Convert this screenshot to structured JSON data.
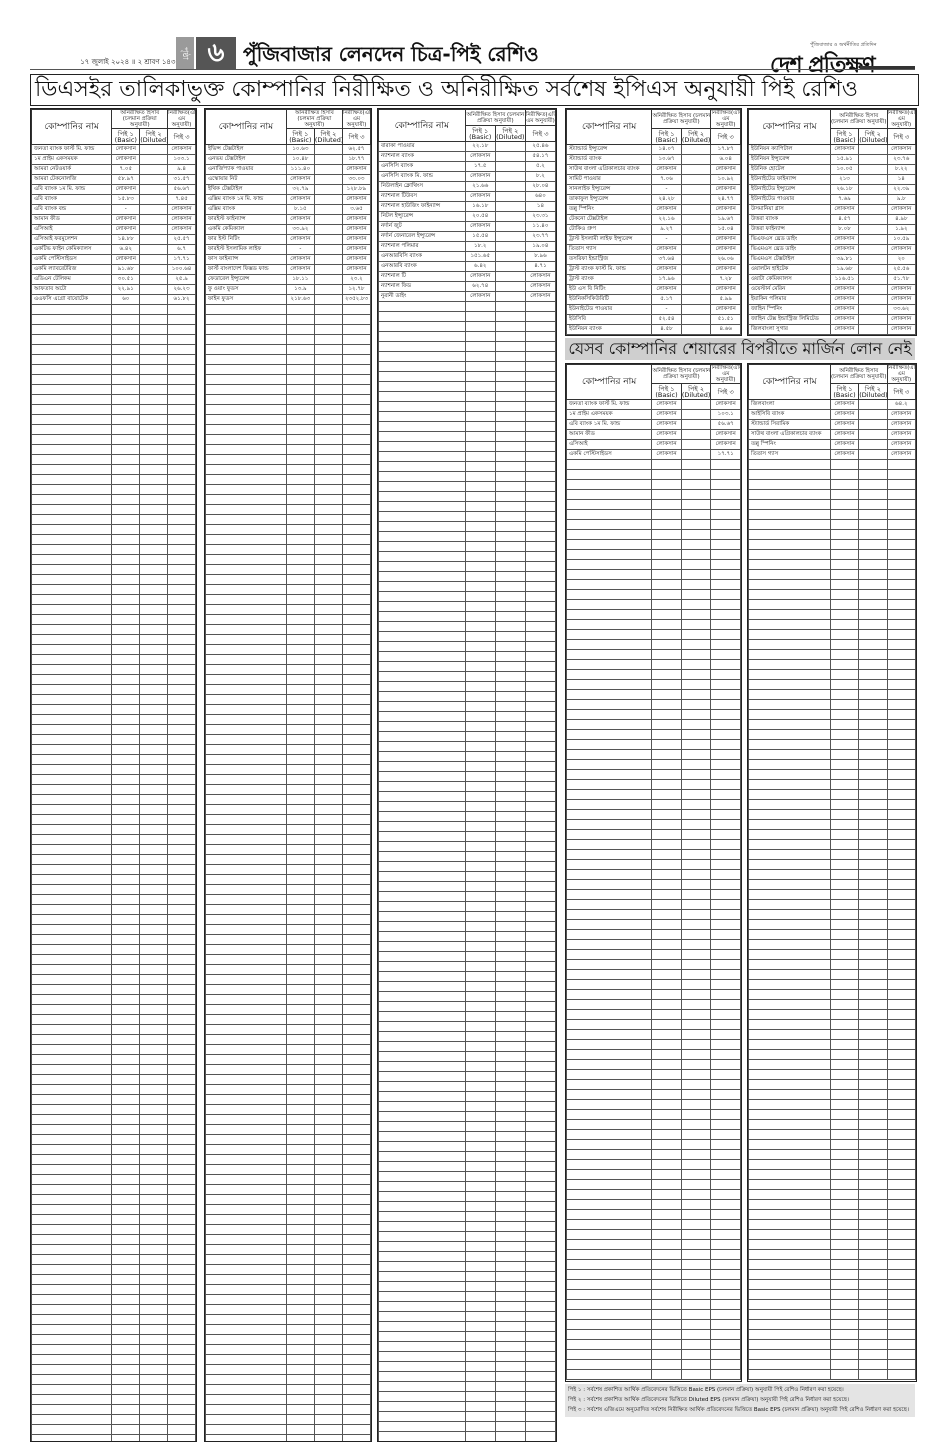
{
  "header": {
    "day": "বুধবার",
    "date": "১৭ জুলাই ২০২৪ ॥ ২ শ্রাবণ ১৪৩১",
    "page_label": "পৃষ্ঠা",
    "page_number": "৬",
    "section_title": "পুঁজিবাজার লেনদেন চিত্র-পিই রেশিও",
    "logo_text": "দেশ প্রতিক্ষণ",
    "logo_tagline": "পুঁজিবাজার ও অর্থনীতির প্রতিদিন"
  },
  "main_banner": "ডিএসইর তালিকাভুক্ত কোম্পানির নিরীক্ষিত ও অনিরীক্ষিত সর্বশেষ ইপিএস অনুযায়ী পিই রেশিও",
  "margin_banner": "যেসব কোম্পানির শেয়ারের বিপরীতে মার্জিন লোন নেই",
  "columns": {
    "company": "কোম্পানির নাম",
    "unaudited": "অনিরীক্ষিত হিসাব (চলমান প্রক্রিয়া অনুযায়ী)",
    "audited": "নিরীক্ষিত(এজি এম অনুযায়ী)",
    "pe1": "পিই ১ (Basic)",
    "pe2": "পিই ২ (Diluted)",
    "pe3": "পিই ৩"
  },
  "tables": {
    "t1": [
      [
        "জনতা ব্যাংক ফার্স্ট মি. ফান্ড",
        "লোকসান",
        "",
        "লোকসান"
      ],
      [
        "১ম প্রাইম একসময়ক",
        "লোকসান",
        "",
        "১০৩.১"
      ],
      [
        "আমরা নেটওয়ার্ক",
        "৭.০৫",
        "",
        "৯.৪"
      ],
      [
        "আমরা টেকনোলজি",
        "৫৮.৯৭",
        "",
        "৩১.৫৭"
      ],
      [
        "এবি ব্যাংক ১ম মি. ফান্ড",
        "লোকসান",
        "",
        "৫৬.৬৭"
      ],
      [
        "এবি ব্যাংক",
        "১৫.৮৩",
        "",
        "৭.৪৫"
      ],
      [
        "এবি ব্যাংক বন্ড",
        "-",
        "",
        "লোকসান"
      ],
      [
        "আমান ফীড",
        "লোকসান",
        "",
        "লোকসান"
      ],
      [
        "এসিআই",
        "লোকসান",
        "",
        "লোকসান"
      ],
      [
        "এসিআই ফরমুলেশন",
        "১৪.৮৮",
        "",
        "২৫.৫৭"
      ],
      [
        "একটিভ ফাইন কেমিক্যালস",
        "৬.৪২",
        "",
        "৬.৭"
      ],
      [
        "একমি পেস্টিসাইডস",
        "লোকসান",
        "",
        "১৭.৭১"
      ],
      [
        "একমি ল্যাবরেটরিজ",
        "৯১.৬৮",
        "",
        "১০০.৬৪"
      ],
      [
        "এডিএন টেলিকম",
        "৩০.৫১",
        "",
        "২৫.৯"
      ],
      [
        "আফতাব অটো",
        "২২.৯১",
        "",
        "২৬.২৩"
      ],
      [
        "এএফসি এগ্রো বায়োটেক",
        "৬০",
        "",
        "৬১.৮২"
      ]
    ],
    "t2": [
      [
        "ইভিন্স টেক্সটাইল",
        "১০.৬৩",
        "",
        "৬২.৫৭"
      ],
      [
        "এনভয় টেক্সটাইল",
        "১০.৪৮",
        "",
        "১৮.৭৭"
      ],
      [
        "এনার্জিপ্যাক পাওয়ার",
        "১১১.৪০",
        "",
        "লোকসান"
      ],
      [
        "এস্কোয়ার নিট",
        "লোকসান",
        "",
        "৩৩.০৩"
      ],
      [
        "ইথিক টেক্সটাইল",
        "৩২.৭৯",
        "",
        "১২৮.৮৯"
      ],
      [
        "এক্সিম ব্যাংক ১ম মি. ফান্ড",
        "লোকসান",
        "",
        "লোকসান"
      ],
      [
        "এক্সিম ব্যাংক",
        "৮.১৫",
        "",
        "৩.৬৫"
      ],
      [
        "ফারইস্ট ফাইন্যান্স",
        "লোকসান",
        "",
        "লোকসান"
      ],
      [
        "একমি কেমিক্যাল",
        "৩৩.৯২",
        "",
        "লোকসান"
      ],
      [
        "ফার ইস্ট নিটিং",
        "লোকসান",
        "",
        "লোকসান"
      ],
      [
        "ফারইস্ট ইসলামিক লাইফ",
        "-",
        "",
        "লোকসান"
      ],
      [
        "ফাস ফাইন্যান্স",
        "লোকসান",
        "",
        "লোকসান"
      ],
      [
        "ফার্স্ট বাংলাদেশ ফিক্সড ফান্ড",
        "লোকসান",
        "",
        "লোকসান"
      ],
      [
        "ফেডারেল ইন্স্যুরেন্স",
        "১৮.১১",
        "",
        "২৩.২"
      ],
      [
        "ফু ওয়াং ফুডস",
        "১৩.৯",
        "",
        "১২.৭৮"
      ],
      [
        "ফাইন ফুডস",
        "২১৮.৬৩",
        "",
        "২৩৫২.৮৩"
      ]
    ],
    "t3": [
      [
        "বারাকা পাওয়ার",
        "২২.১৮",
        "",
        "২৫.৪৬"
      ],
      [
        "ন্যাশনাল ব্যাংক",
        "লোকসান",
        "",
        "৫৪.১৭"
      ],
      [
        "এনসিসি ব্যাংক",
        "১৭.৫",
        "",
        "৫.২"
      ],
      [
        "এনসিসি ব্যাংক মি. ফান্ড",
        "লোকসান",
        "",
        "৮.২"
      ],
      [
        "নিউলাইন ক্লোথিংস",
        "২১.৬৬",
        "",
        "২৮.০৪"
      ],
      [
        "ন্যাশনাল টিউবস",
        "লোকসান",
        "",
        "৬৪০"
      ],
      [
        "ন্যাশনাল হাউজিং ফাইন্যান্স",
        "১৬.১৮",
        "",
        "১৪"
      ],
      [
        "নিটল ইন্স্যুরেন্স",
        "২০.৫৪",
        "",
        "২৩.৩১"
      ],
      [
        "নর্দার্ন জুট",
        "লোকসান",
        "",
        "১১.৪০"
      ],
      [
        "নর্দার্ন জেনারেল ইন্স্যুরেন্স",
        "১৫.৫৪",
        "",
        "২৩.৭৭"
      ],
      [
        "ন্যাশনাল পলিমার",
        "১৮.২",
        "",
        "১৯.০৪"
      ],
      [
        "এনআরবিসি ব্যাংক",
        "১৫১.৬৫",
        "",
        "৮.৯৬"
      ],
      [
        "এনআরবি ব্যাংক",
        "৬.৪২",
        "",
        "৪.৭১"
      ],
      [
        "ন্যাশনাল টি",
        "লোকসান",
        "",
        "লোকসান"
      ],
      [
        "ন্যাশনাল ফিড",
        "৬২.৭৪",
        "",
        "লোকসান"
      ],
      [
        "নুরানী ডাইং",
        "লোকসান",
        "",
        "লোকসান"
      ]
    ],
    "t4": [
      [
        "স্ট্যান্ডার্ড ইন্স্যুরেন্স",
        "১৪.০৭",
        "",
        "১৭.৮৭"
      ],
      [
        "স্ট্যান্ডার্ড ব্যাংক",
        "১০.৬৭",
        "",
        "৬.০৪"
      ],
      [
        "সাউথ বাংলা এগ্রিকালচার ব্যাংক",
        "লোকসান",
        "",
        "লোকসান"
      ],
      [
        "সামিট পাওয়ার",
        "৭.০৬",
        "",
        "১০.৯২"
      ],
      [
        "সানলাইফ ইন্স্যুরেন্স",
        "-",
        "",
        "লোকসান"
      ],
      [
        "তাকাফুল ইন্স্যুরেন্স",
        "২৪.২৮",
        "",
        "২৪.৭৭"
      ],
      [
        "তল্লু স্পিনিং",
        "লোকসান",
        "",
        "লোকসান"
      ],
      [
        "টেকনো টেক্সটাইল",
        "২২.১৬",
        "",
        "১৯.৬৭"
      ],
      [
        "টোকিও গ্রুপ",
        "৯.২৭",
        "",
        "১৫.০৪"
      ],
      [
        "ট্রাস্ট ইসলামী লাইফ ইন্স্যুরেন্স",
        "-",
        "",
        "লোকসান"
      ],
      [
        "তিতাস গ্যাস",
        "লোকসান",
        "",
        "লোকসান"
      ],
      [
        "তসরিফা ইন্ডাস্ট্রিজ",
        "৩৭.৬৪",
        "",
        "২৬.০৬"
      ],
      [
        "ট্রাস্ট ব্যাংক ফার্স্ট মি. ফান্ড",
        "লোকসান",
        "",
        "লোকসান"
      ],
      [
        "ট্রাস্ট ব্যাংক",
        "১৭.৯৬",
        "",
        "৭.২৮"
      ],
      [
        "ইউ এস বি নিটিং",
        "লোকসান",
        "",
        "লোকসান"
      ],
      [
        "ইউনিকসিকিউরিটি",
        "৫.১৭",
        "",
        "৫.৯৯"
      ],
      [
        "ইউনাইটেড পাওয়ার",
        "-",
        "",
        "লোকসান"
      ],
      [
        "ইউসিবি",
        "৫২.৫৪",
        "",
        "৫১.৫১"
      ],
      [
        "ইউনিয়ন ব্যাংক",
        "৪.৫৮",
        "",
        "৪.৬৬"
      ]
    ],
    "t5": [
      [
        "ইউনিয়ন ক্যাপিটাল",
        "লোকসান",
        "",
        "লোকসান"
      ],
      [
        "ইউনিয়ন ইন্স্যুরেন্স",
        "১৫.৯১",
        "",
        "২৩.৭৬"
      ],
      [
        "ইউনিক হোটেল",
        "১০.০৫",
        "",
        "৮.২২"
      ],
      [
        "ইউনাইটেড ফাইন্যান্স",
        "২১৩",
        "",
        "১৪"
      ],
      [
        "ইউনাইটেড ইন্স্যুরেন্স",
        "২৬.১৮",
        "",
        "২২.৩৯"
      ],
      [
        "ইউনাইটেড পাওয়ার",
        "৭.৬৯",
        "",
        "৯.৮"
      ],
      [
        "উসমানিয়া গ্লাস",
        "লোকসান",
        "",
        "লোকসান"
      ],
      [
        "উত্তরা ব্যাংক",
        "৪.৫৭",
        "",
        "৪.৯৮"
      ],
      [
        "উত্তরা ফাইন্যান্স",
        "৮.০৮",
        "",
        "১.৯২"
      ],
      [
        "ভিএফএস থ্রেড ডাইং",
        "লোকসান",
        "",
        "১০.৫৯"
      ],
      [
        "ভিএমএস থ্রেড ডাইং",
        "লোকসান",
        "",
        "লোকসান"
      ],
      [
        "ভিএমএস টেক্সটাইল",
        "৩৯.৮১",
        "",
        "২০"
      ],
      [
        "ওয়ালটন হাইটেক",
        "১৯.৬৮",
        "",
        "২৫.৫৬"
      ],
      [
        "ওয়াটা কেমিক্যালস",
        "১১৬.৫১",
        "",
        "৫১.৭৮"
      ],
      [
        "ওয়েস্টার্ন মেরিন",
        "লোকসান",
        "",
        "লোকসান"
      ],
      [
        "ইয়াকিন পলিমার",
        "লোকসান",
        "",
        "লোকসান"
      ],
      [
        "জাহিন স্পিনিং",
        "লোকসান",
        "",
        "৩৩.৬২"
      ],
      [
        "জাহিন টেক্স ইন্ডাস্ট্রিজ লিমিটেড",
        "লোকসান",
        "",
        "লোকসান"
      ],
      [
        "জিলবাংলা সুগার",
        "লোকসান",
        "",
        "লোকসান"
      ]
    ],
    "t6": [
      [
        "জনতা ব্যাংক ফার্স্ট মি. ফান্ড",
        "লোকসান",
        "",
        "লোকসান"
      ],
      [
        "১ম প্রাইম একসময়ক",
        "লোকসান",
        "",
        "১০৩.১"
      ],
      [
        "এবি ব্যাংক ১ম মি. ফান্ড",
        "লোকসান",
        "",
        "৫৬.৬৭"
      ],
      [
        "আমান ফীড",
        "লোকসান",
        "",
        "লোকসান"
      ],
      [
        "এসিআই",
        "লোকসান",
        "",
        "লোকসান"
      ],
      [
        "একমি পেস্টিসাইডস",
        "লোকসান",
        "",
        "১৭.৭১"
      ]
    ],
    "t7": [
      [
        "জিলবাংলা",
        "লোকসান",
        "",
        "৬৪.২"
      ],
      [
        "আইসিবি ব্যাংক",
        "লোকসান",
        "",
        "লোকসান"
      ],
      [
        "স্ট্যান্ডার্ড সিরামিক",
        "লোকসান",
        "",
        "লোকসান"
      ],
      [
        "সাউথ বাংলা এগ্রিকালচার ব্যাংক",
        "লোকসান",
        "",
        "লোকসান"
      ],
      [
        "তল্লু স্পিনিং",
        "লোকসান",
        "",
        "লোকসান"
      ],
      [
        "তিতাস গ্যাস",
        "লোকসান",
        "",
        "লোকসান"
      ]
    ]
  },
  "footnotes": [
    "পিই ১ : সর্বশেষ প্রকাশিত আর্থিক প্রতিবেদনের ভিত্তিতে Basic EPS (চলমান প্রক্রিয়া) অনুযায়ী পিই রেশিও নির্ধারণ করা হয়েছে।",
    "পিই ২ : সর্বশেষ প্রকাশিত আর্থিক প্রতিবেদনের ভিত্তিতে Diluted EPS (চলমান প্রক্রিয়া) অনুযায়ী পিই রেশিও নির্ধারণ করা হয়েছে।",
    "পিই ৩ : সর্বশেষ এজিএমে অনুমোদিত সর্বশেষ নিরীক্ষিত আর্থিক প্রতিবেদনের ভিত্তিতে Basic EPS (চলমান প্রক্রিয়া) অনুযায়ী পিই রেশিও নির্ধারণ করা হয়েছে।"
  ],
  "colors": {
    "banner_gray": "#cfcfcf",
    "page_badge": "#555555",
    "notes_bg": "#e4e4e4"
  }
}
